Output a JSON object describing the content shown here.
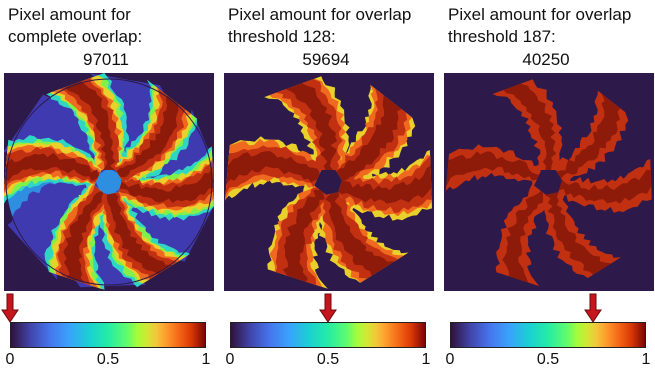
{
  "colors": {
    "background": "#2e1a4a",
    "deep_red": "#8e1a0a",
    "red": "#c23012",
    "orange": "#ef6a1e",
    "yellow": "#e9d02a",
    "green": "#82f04a",
    "cyan": "#2fd6c4",
    "blue": "#2e8ee0",
    "indigo": "#3f3ab0",
    "arrow_fill": "#c4161c",
    "arrow_stroke": "#6b0a0a"
  },
  "colormap": "turbo",
  "colorbar_ticks": [
    "0",
    "0.5",
    "1"
  ],
  "panels": [
    {
      "caption": "Pixel amount for\ncomplete overlap:",
      "count": "97011",
      "threshold_fraction": 0.0,
      "style": "full-disk"
    },
    {
      "caption": "Pixel amount for overlap\nthreshold 128:",
      "count": "59694",
      "threshold_fraction": 0.5,
      "style": "six-arm-rotor"
    },
    {
      "caption": "Pixel amount for overlap\nthreshold 187:",
      "count": "40250",
      "threshold_fraction": 0.73,
      "style": "six-arm-rotor-thin"
    }
  ]
}
